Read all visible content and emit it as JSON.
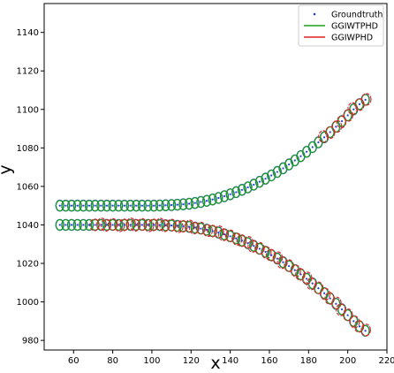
{
  "chart_data": {
    "type": "scatter",
    "xlabel": "x",
    "ylabel": "y",
    "xlim": [
      45,
      220
    ],
    "ylim": [
      975,
      1155
    ],
    "xticks": [
      60,
      80,
      100,
      120,
      140,
      160,
      180,
      200,
      220
    ],
    "yticks": [
      980,
      1000,
      1020,
      1040,
      1060,
      1080,
      1100,
      1120,
      1140
    ],
    "grid": false,
    "legend_position": "top-right",
    "colors": {
      "groundtruth": "#1f3fd1",
      "ggiwtphd": "#1aa11a",
      "ggiwphd": "#e02020"
    },
    "series": [
      {
        "name": "Groundtruth",
        "style": "points",
        "tracks": [
          {
            "x": [
              53,
              56,
              59,
              62,
              65,
              68,
              71,
              74,
              77,
              80,
              83,
              86,
              89,
              92,
              95,
              98,
              101,
              104,
              107,
              110,
              113,
              116,
              119,
              122,
              125,
              128,
              131,
              134,
              137,
              140,
              143,
              146,
              149,
              152,
              155,
              158,
              161,
              164,
              167,
              170,
              173,
              176,
              179,
              182,
              185,
              188,
              191,
              194,
              197,
              200,
              203,
              206,
              209
            ],
            "y": [
              1050,
              1050,
              1050,
              1050,
              1050,
              1050,
              1050,
              1050,
              1050,
              1050,
              1050,
              1050,
              1050,
              1050,
              1050,
              1050,
              1050,
              1050.1,
              1050.2,
              1050.3,
              1050.5,
              1050.7,
              1051.0,
              1051.4,
              1051.9,
              1052.5,
              1053.2,
              1054.0,
              1054.9,
              1055.9,
              1057.0,
              1058.2,
              1059.5,
              1060.9,
              1062.4,
              1064.0,
              1065.7,
              1067.5,
              1069.4,
              1071.4,
              1073.5,
              1075.7,
              1078.0,
              1080.4,
              1082.9,
              1085.5,
              1088.2,
              1091.0,
              1093.9,
              1096.9,
              1100.0,
              1102.7,
              1105.0
            ]
          },
          {
            "x": [
              53,
              56,
              59,
              62,
              65,
              68,
              71,
              74,
              77,
              80,
              83,
              86,
              89,
              92,
              95,
              98,
              101,
              104,
              107,
              110,
              113,
              116,
              119,
              122,
              125,
              128,
              131,
              134,
              137,
              140,
              143,
              146,
              149,
              152,
              155,
              158,
              161,
              164,
              167,
              170,
              173,
              176,
              179,
              182,
              185,
              188,
              191,
              194,
              197,
              200,
              203,
              206,
              209
            ],
            "y": [
              1040,
              1040,
              1040,
              1040,
              1040,
              1040,
              1040,
              1040,
              1040,
              1040,
              1040,
              1040,
              1040,
              1040,
              1040,
              1040,
              1040,
              1039.9,
              1039.8,
              1039.7,
              1039.5,
              1039.3,
              1039.0,
              1038.6,
              1038.1,
              1037.5,
              1036.8,
              1036.0,
              1035.1,
              1034.1,
              1033.0,
              1031.8,
              1030.5,
              1029.1,
              1027.6,
              1026.0,
              1024.3,
              1022.5,
              1020.6,
              1018.6,
              1016.5,
              1014.3,
              1012.0,
              1009.6,
              1007.1,
              1004.5,
              1001.8,
              999.0,
              996.1,
              993.1,
              990.0,
              987.3,
              985.0
            ]
          }
        ]
      },
      {
        "name": "GGIWTPHD",
        "style": "ellipses",
        "tracks": [
          {
            "x": [
              53,
              56,
              59,
              62,
              65,
              68,
              71,
              74,
              77,
              80,
              83,
              86,
              89,
              92,
              95,
              98,
              101,
              104,
              107,
              110,
              113,
              116,
              119,
              122,
              125,
              128,
              131,
              134,
              137,
              140,
              143,
              146,
              149,
              152,
              155,
              158,
              161,
              164,
              167,
              170,
              173,
              176,
              179,
              182,
              185,
              188,
              191,
              194,
              197,
              200,
              203,
              206,
              209
            ],
            "y": [
              1050,
              1050,
              1050,
              1050,
              1050,
              1050,
              1050,
              1050,
              1050,
              1050,
              1050,
              1050,
              1050,
              1050,
              1050,
              1050,
              1050,
              1050.1,
              1050.2,
              1050.3,
              1050.5,
              1050.7,
              1051.0,
              1051.4,
              1051.9,
              1052.5,
              1053.2,
              1054.0,
              1054.9,
              1055.9,
              1057.0,
              1058.2,
              1059.5,
              1060.9,
              1062.4,
              1064.0,
              1065.7,
              1067.5,
              1069.4,
              1071.4,
              1073.5,
              1075.7,
              1078.0,
              1080.4,
              1082.9,
              1085.5,
              1088.2,
              1091.0,
              1093.9,
              1096.9,
              1100.0,
              1102.7,
              1105.0
            ]
          },
          {
            "x": [
              53,
              56,
              59,
              62,
              65,
              68,
              71,
              74,
              77,
              80,
              83,
              86,
              89,
              92,
              95,
              98,
              101,
              104,
              107,
              110,
              113,
              116,
              119,
              122,
              125,
              128,
              131,
              134,
              137,
              140,
              143,
              146,
              149,
              152,
              155,
              158,
              161,
              164,
              167,
              170,
              173,
              176,
              179,
              182,
              185,
              188,
              191,
              194,
              197,
              200,
              203,
              206,
              209
            ],
            "y": [
              1040,
              1040,
              1040,
              1040,
              1040,
              1040,
              1040,
              1040,
              1040,
              1040,
              1040,
              1040,
              1040,
              1040,
              1040,
              1040,
              1040,
              1039.9,
              1039.8,
              1039.7,
              1039.5,
              1039.3,
              1039.0,
              1038.6,
              1038.1,
              1037.5,
              1036.8,
              1036.0,
              1035.1,
              1034.1,
              1033.0,
              1031.8,
              1030.5,
              1029.1,
              1027.6,
              1026.0,
              1024.3,
              1022.5,
              1020.6,
              1018.6,
              1016.5,
              1014.3,
              1012.0,
              1009.6,
              1007.1,
              1004.5,
              1001.8,
              999.0,
              996.1,
              993.1,
              990.0,
              987.3,
              985.0
            ]
          }
        ]
      },
      {
        "name": "GGIWPHD",
        "style": "ellipses",
        "tracks": [
          {
            "x": [
              188,
              191,
              194,
              197,
              200,
              203,
              206,
              209
            ],
            "y": [
              1085.5,
              1088.2,
              1091.0,
              1093.9,
              1096.9,
              1100.0,
              1102.7,
              1105.0
            ]
          },
          {
            "x": [
              71,
              74,
              77,
              80,
              83,
              86,
              89,
              92,
              95,
              98,
              101,
              104,
              107,
              110,
              113,
              116,
              119,
              122,
              125,
              128,
              131,
              134,
              137,
              140,
              143,
              146,
              149,
              152,
              155,
              158,
              161,
              164,
              167,
              170,
              173,
              176,
              179,
              182,
              185,
              188,
              191,
              194,
              197,
              200,
              203,
              206,
              209
            ],
            "y": [
              1040,
              1040,
              1040,
              1040,
              1040,
              1040,
              1040,
              1040,
              1040,
              1040,
              1040,
              1039.9,
              1039.8,
              1039.7,
              1039.5,
              1039.3,
              1039.0,
              1038.6,
              1038.1,
              1037.5,
              1036.8,
              1036.0,
              1035.1,
              1034.1,
              1033.0,
              1031.8,
              1030.5,
              1029.1,
              1027.6,
              1026.0,
              1024.3,
              1022.5,
              1020.6,
              1018.6,
              1016.5,
              1014.3,
              1012.0,
              1009.6,
              1007.1,
              1004.5,
              1001.8,
              999.0,
              996.1,
              993.1,
              990.0,
              987.3,
              985.0
            ]
          }
        ]
      }
    ]
  }
}
